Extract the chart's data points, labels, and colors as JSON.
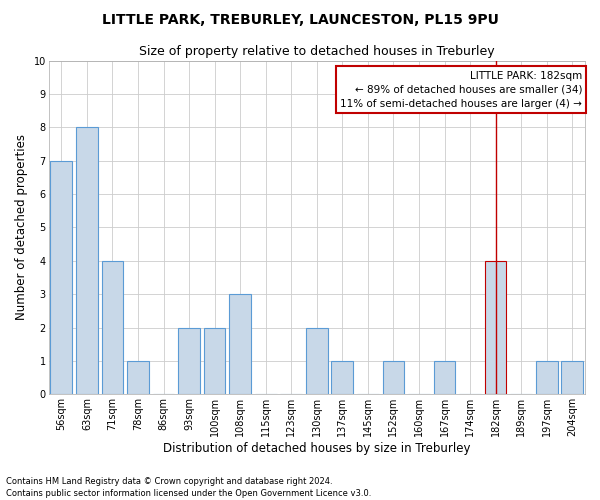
{
  "title": "LITTLE PARK, TREBURLEY, LAUNCESTON, PL15 9PU",
  "subtitle": "Size of property relative to detached houses in Treburley",
  "xlabel": "Distribution of detached houses by size in Treburley",
  "ylabel": "Number of detached properties",
  "categories": [
    "56sqm",
    "63sqm",
    "71sqm",
    "78sqm",
    "86sqm",
    "93sqm",
    "100sqm",
    "108sqm",
    "115sqm",
    "123sqm",
    "130sqm",
    "137sqm",
    "145sqm",
    "152sqm",
    "160sqm",
    "167sqm",
    "174sqm",
    "182sqm",
    "189sqm",
    "197sqm",
    "204sqm"
  ],
  "values": [
    7,
    8,
    4,
    1,
    0,
    2,
    2,
    3,
    0,
    0,
    2,
    1,
    0,
    1,
    0,
    1,
    0,
    4,
    0,
    1,
    1
  ],
  "bar_color": "#c8d8e8",
  "bar_edgecolor": "#5b9bd5",
  "highlight_index": 17,
  "highlight_color": "#c8d8e8",
  "highlight_edgecolor": "#c00000",
  "vline_color": "#c00000",
  "vline_index": 17,
  "ylim": [
    0,
    10
  ],
  "yticks": [
    0,
    1,
    2,
    3,
    4,
    5,
    6,
    7,
    8,
    9,
    10
  ],
  "grid_color": "#cccccc",
  "annotation_title": "LITTLE PARK: 182sqm",
  "annotation_line1": "← 89% of detached houses are smaller (34)",
  "annotation_line2": "11% of semi-detached houses are larger (4) →",
  "annotation_box_color": "#ffffff",
  "annotation_box_edgecolor": "#c00000",
  "footer1": "Contains HM Land Registry data © Crown copyright and database right 2024.",
  "footer2": "Contains public sector information licensed under the Open Government Licence v3.0.",
  "background_color": "#ffffff",
  "title_fontsize": 10,
  "subtitle_fontsize": 9,
  "axis_label_fontsize": 8.5,
  "tick_fontsize": 7,
  "annotation_fontsize": 7.5,
  "footer_fontsize": 6
}
